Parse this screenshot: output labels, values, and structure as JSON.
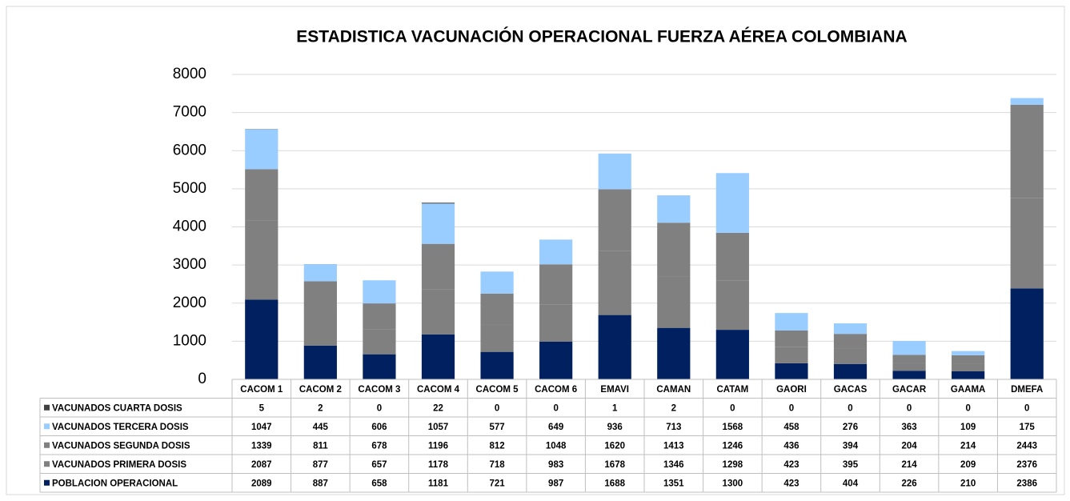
{
  "chart_data": {
    "type": "stacked_bar",
    "title": "ESTADISTICA VACUNACIÓN OPERACIONAL FUERZA AÉREA COLOMBIANA",
    "categories": [
      "CACOM 1",
      "CACOM 2",
      "CACOM 3",
      "CACOM 4",
      "CACOM 5",
      "CACOM 6",
      "EMAVI",
      "CAMAN",
      "CATAM",
      "GAORI",
      "GACAS",
      "GACAR",
      "GAAMA",
      "DMEFA"
    ],
    "series": [
      {
        "name": "POBLACION OPERACIONAL",
        "color": "#002060",
        "values": [
          2089,
          887,
          658,
          1181,
          721,
          987,
          1688,
          1351,
          1300,
          423,
          404,
          226,
          210,
          2386
        ]
      },
      {
        "name": "VACUNADOS PRIMERA DOSIS",
        "color": "#808080",
        "values": [
          2087,
          877,
          657,
          1178,
          718,
          983,
          1678,
          1346,
          1298,
          423,
          395,
          214,
          209,
          2376
        ]
      },
      {
        "name": "VACUNADOS SEGUNDA DOSIS",
        "color": "#808080",
        "values": [
          1339,
          811,
          678,
          1196,
          812,
          1048,
          1620,
          1413,
          1246,
          436,
          394,
          204,
          214,
          2443
        ]
      },
      {
        "name": "VACUNADOS TERCERA DOSIS",
        "color": "#99ccff",
        "values": [
          1047,
          445,
          606,
          1057,
          577,
          649,
          936,
          713,
          1568,
          458,
          276,
          363,
          109,
          175
        ]
      },
      {
        "name": "VACUNADOS CUARTA DOSIS",
        "color": "#404040",
        "values": [
          5,
          2,
          0,
          22,
          0,
          0,
          1,
          2,
          0,
          0,
          0,
          0,
          0,
          0
        ]
      }
    ],
    "ylim": [
      0,
      8000
    ],
    "yticks": [
      0,
      1000,
      2000,
      3000,
      4000,
      5000,
      6000,
      7000,
      8000
    ],
    "grid": true
  }
}
